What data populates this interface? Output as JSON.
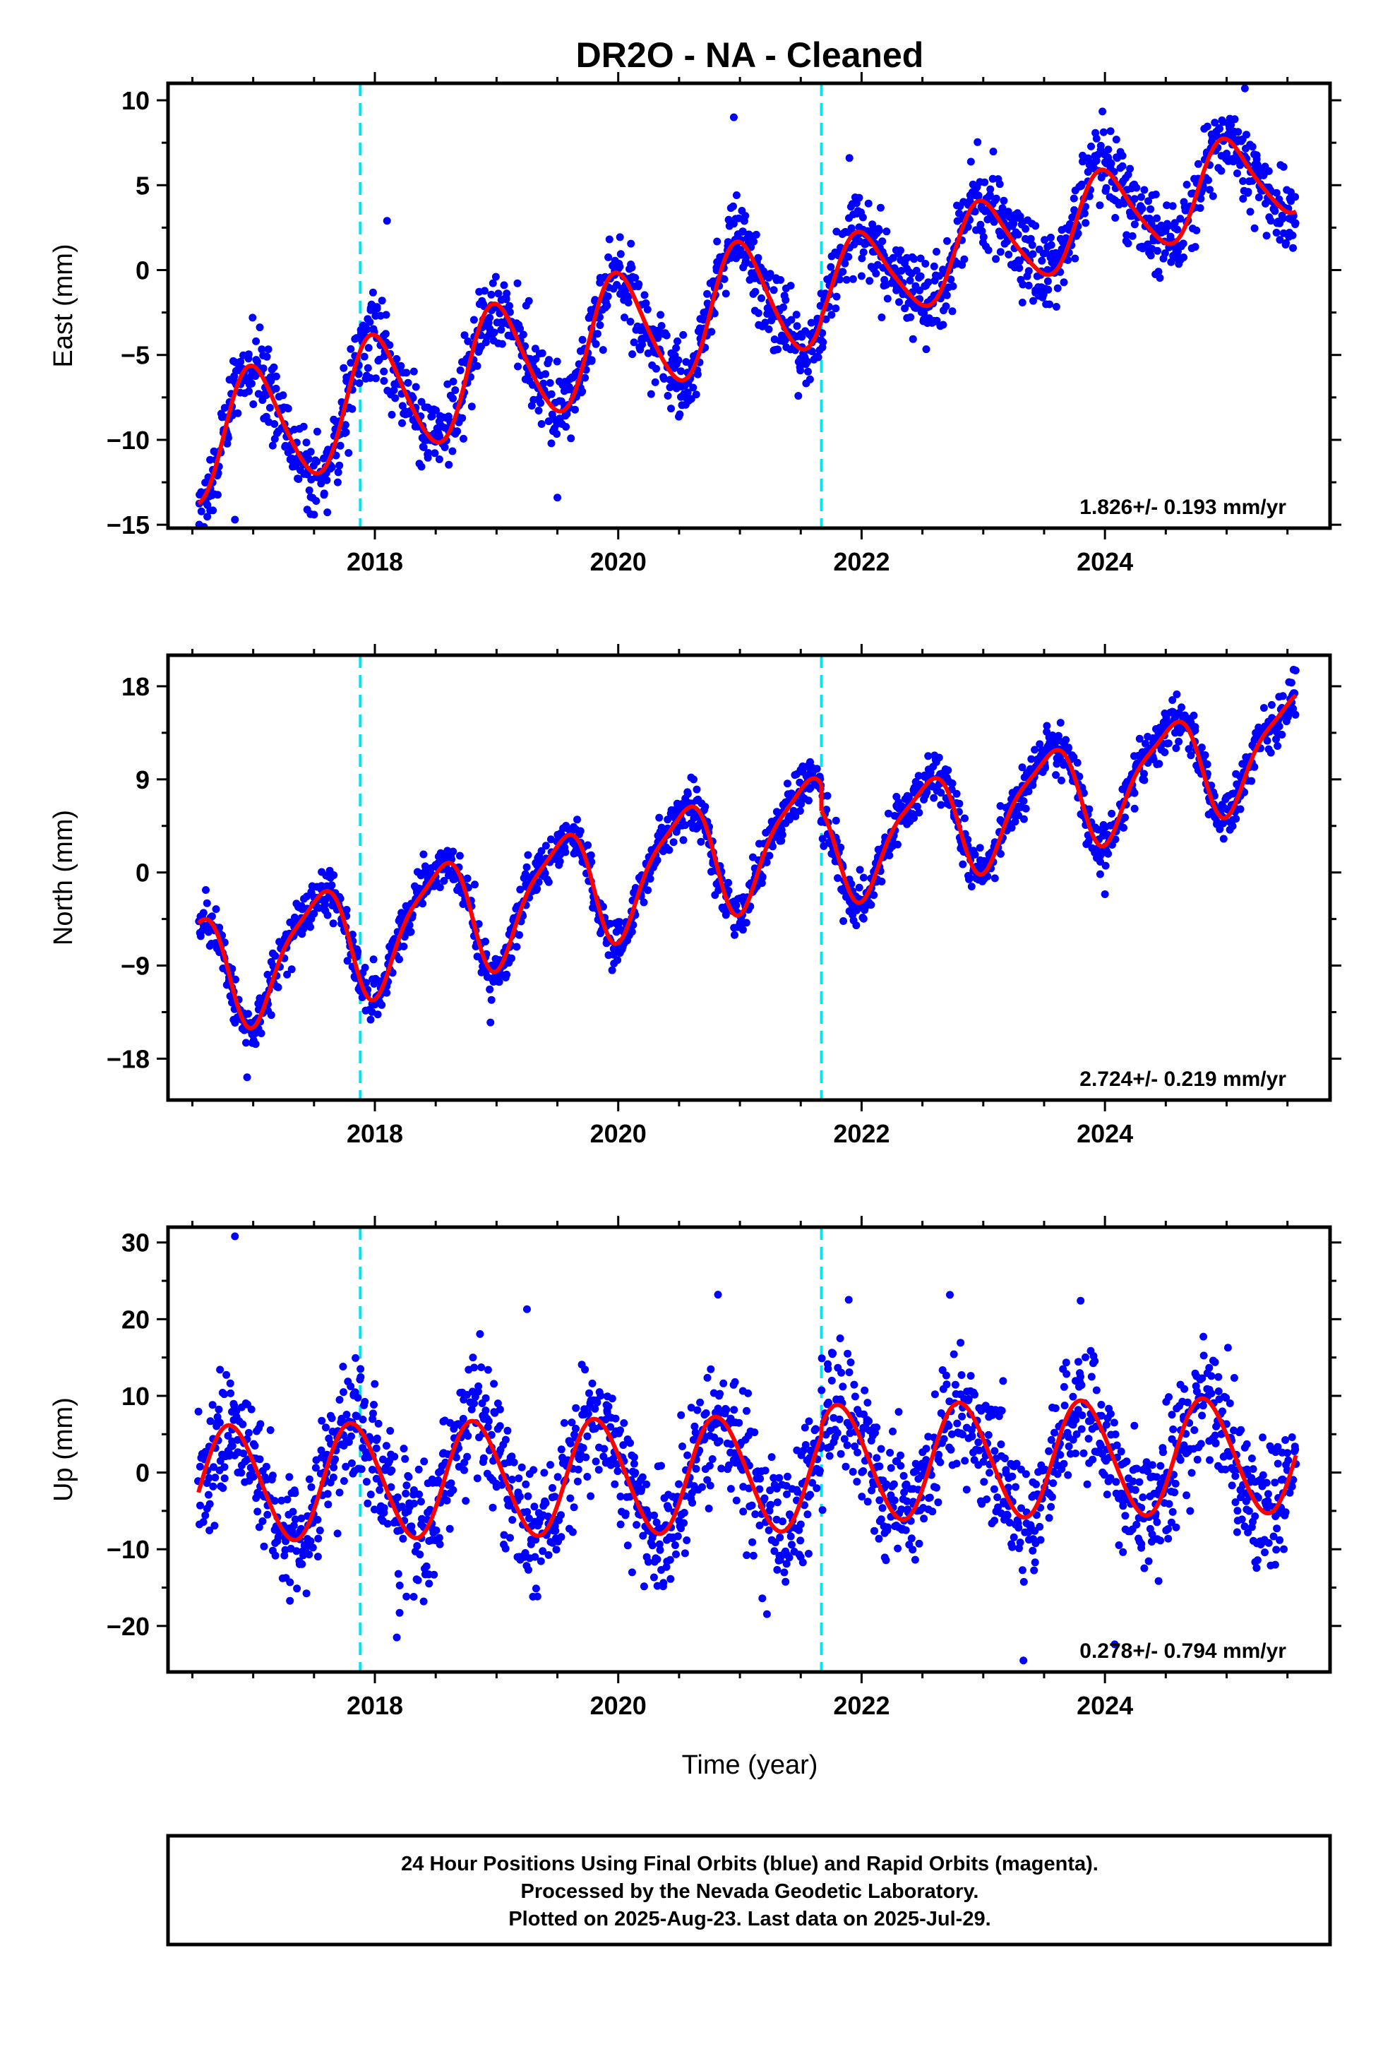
{
  "title": "DR2O  - NA - Cleaned",
  "colors": {
    "points": "#0000ff",
    "fit": "#ff0000",
    "event_lines": "#00e5ee",
    "frame": "#000000"
  },
  "xlabel": "Time (year)",
  "footer": [
    "24 Hour Positions Using Final Orbits (blue) and Rapid Orbits (magenta).",
    "Processed by the Nevada Geodetic Laboratory.",
    "Plotted on 2025-Aug-23. Last data on 2025-Jul-29."
  ],
  "chart_data": [
    {
      "type": "scatter",
      "ylabel": "East (mm)",
      "rate_label": "1.826+/- 0.193 mm/yr",
      "xlim": [
        2016.3,
        2025.85
      ],
      "ylim": [
        -15.2,
        11.0
      ],
      "x_ticks": [
        2018,
        2020,
        2022,
        2024
      ],
      "y_ticks": [
        10,
        5,
        0,
        -5,
        -10,
        -15
      ],
      "y_tick_labels": [
        "10",
        "5",
        "0",
        "−5",
        "−10",
        "−15"
      ],
      "event_lines": [
        2017.88,
        2021.67
      ],
      "fit": {
        "segments": [
          {
            "x0": 2016.55,
            "x1": 2021.67,
            "intercept": -10.2,
            "slope": 1.826,
            "t0": 2016.55,
            "amp_annual": 3.6,
            "phase_annual": 2017.0,
            "amp_semi": 0.4,
            "phase_semi": 2016.9
          },
          {
            "x0": 2021.67,
            "x1": 2025.57,
            "intercept": -1.1,
            "slope": 1.826,
            "t0": 2021.67,
            "amp_annual": 2.6,
            "phase_annual": 2023.0,
            "amp_semi": 0.4,
            "phase_semi": 2022.9
          }
        ]
      },
      "scatter_sd": 1.2,
      "outliers": [
        [
          2016.85,
          -14.7
        ],
        [
          2019.5,
          -13.4
        ],
        [
          2020.95,
          9.0
        ],
        [
          2025.15,
          10.7
        ],
        [
          2018.1,
          2.9
        ],
        [
          2021.9,
          6.6
        ]
      ]
    },
    {
      "type": "scatter",
      "ylabel": "North (mm)",
      "rate_label": "2.724+/- 0.219 mm/yr",
      "xlim": [
        2016.3,
        2025.85
      ],
      "ylim": [
        -22.0,
        21.0
      ],
      "x_ticks": [
        2018,
        2020,
        2022,
        2024
      ],
      "y_ticks": [
        18,
        9,
        0,
        -9,
        -18
      ],
      "y_tick_labels": [
        "18",
        "9",
        "0",
        "−9",
        "−18"
      ],
      "event_lines": [
        2017.88,
        2021.67
      ],
      "fit": {
        "segments": [
          {
            "x0": 2016.55,
            "x1": 2021.67,
            "intercept": -9.8,
            "slope": 2.724,
            "t0": 2016.55,
            "amp_annual": 5.4,
            "phase_annual": 2017.52,
            "amp_semi": 1.3,
            "phase_semi": 2016.7
          },
          {
            "x0": 2021.67,
            "x1": 2025.57,
            "intercept": 2.0,
            "slope": 2.724,
            "t0": 2021.67,
            "amp_annual": 4.8,
            "phase_annual": 2022.52,
            "amp_semi": 1.2,
            "phase_semi": 2021.7
          }
        ]
      },
      "scatter_sd": 1.1,
      "outliers": [
        [
          2016.95,
          -19.8
        ],
        [
          2018.95,
          -14.5
        ],
        [
          2021.85,
          -4.7
        ],
        [
          2024.0,
          -2.1
        ],
        [
          2025.55,
          19.6
        ]
      ]
    },
    {
      "type": "scatter",
      "ylabel": "Up (mm)",
      "rate_label": "0.278+/- 0.794 mm/yr",
      "xlim": [
        2016.3,
        2025.85
      ],
      "ylim": [
        -26.0,
        32.0
      ],
      "x_ticks": [
        2018,
        2020,
        2022,
        2024
      ],
      "y_ticks": [
        30,
        20,
        10,
        0,
        -10,
        -20
      ],
      "y_tick_labels": [
        "30",
        "20",
        "10",
        "0",
        "−10",
        "−20"
      ],
      "event_lines": [
        2017.88,
        2021.67
      ],
      "fit": {
        "segments": [
          {
            "x0": 2016.55,
            "x1": 2021.67,
            "intercept": -1.5,
            "slope": 0.278,
            "t0": 2016.55,
            "amp_annual": 7.5,
            "phase_annual": 2016.82,
            "amp_semi": 0.5,
            "phase_semi": 2016.7
          },
          {
            "x0": 2021.67,
            "x1": 2025.57,
            "intercept": 1.2,
            "slope": 0.278,
            "t0": 2021.67,
            "amp_annual": 7.5,
            "phase_annual": 2021.82,
            "amp_semi": 0.5,
            "phase_semi": 2021.7
          }
        ]
      },
      "scatter_sd": 4.2,
      "outliers": [
        [
          2016.85,
          30.8
        ],
        [
          2019.25,
          21.3
        ],
        [
          2020.82,
          23.2
        ],
        [
          2023.8,
          22.4
        ],
        [
          2023.33,
          -24.5
        ],
        [
          2018.18,
          -21.5
        ],
        [
          2024.08,
          -22.4
        ]
      ]
    }
  ]
}
